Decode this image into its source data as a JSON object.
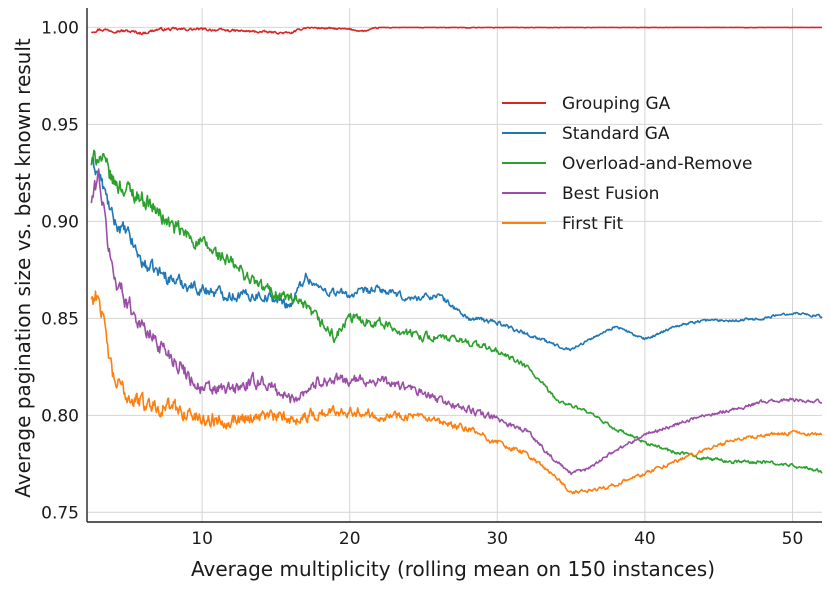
{
  "chart_data": {
    "type": "line",
    "title": "",
    "xlabel": "Average multiplicity (rolling mean on 150 instances)",
    "ylabel": "Average pagination size vs. best known result",
    "xlim": [
      2.2,
      52
    ],
    "ylim": [
      0.745,
      1.01
    ],
    "xticks": [
      10,
      20,
      30,
      40,
      50
    ],
    "yticks": [
      0.75,
      0.8,
      0.85,
      0.9,
      0.95,
      1.0
    ],
    "xtick_labels": [
      "10",
      "20",
      "30",
      "40",
      "50"
    ],
    "ytick_labels": [
      "0.75",
      "0.80",
      "0.85",
      "0.90",
      "0.95",
      "1.00"
    ],
    "grid": true,
    "legend_position": "upper-right",
    "series": [
      {
        "name": "Grouping GA",
        "color": "#d62728",
        "noise": 0.0015,
        "points": [
          [
            2.5,
            0.998
          ],
          [
            3,
            0.999
          ],
          [
            5,
            0.998
          ],
          [
            6,
            0.997
          ],
          [
            7,
            0.999
          ],
          [
            10,
            0.999
          ],
          [
            13,
            0.998
          ],
          [
            16,
            0.997
          ],
          [
            17,
            1.0
          ],
          [
            20,
            0.999
          ],
          [
            21,
            0.998
          ],
          [
            22,
            1.0
          ],
          [
            30,
            1.0
          ],
          [
            40,
            1.0
          ],
          [
            52,
            1.0
          ]
        ]
      },
      {
        "name": "Standard GA",
        "color": "#1f77b4",
        "noise": 0.007,
        "points": [
          [
            2.5,
            0.93
          ],
          [
            3,
            0.925
          ],
          [
            4,
            0.9
          ],
          [
            5,
            0.893
          ],
          [
            6,
            0.878
          ],
          [
            8,
            0.87
          ],
          [
            10,
            0.865
          ],
          [
            12,
            0.862
          ],
          [
            14,
            0.862
          ],
          [
            16,
            0.857
          ],
          [
            17,
            0.872
          ],
          [
            18,
            0.865
          ],
          [
            20,
            0.862
          ],
          [
            22,
            0.865
          ],
          [
            24,
            0.86
          ],
          [
            26,
            0.862
          ],
          [
            28,
            0.85
          ],
          [
            30,
            0.848
          ],
          [
            32,
            0.842
          ],
          [
            34,
            0.836
          ],
          [
            35,
            0.834
          ],
          [
            37,
            0.842
          ],
          [
            38,
            0.846
          ],
          [
            40,
            0.839
          ],
          [
            42,
            0.846
          ],
          [
            44,
            0.849
          ],
          [
            46,
            0.849
          ],
          [
            48,
            0.85
          ],
          [
            50,
            0.853
          ],
          [
            52,
            0.851
          ]
        ]
      },
      {
        "name": "Overload-and-Remove",
        "color": "#2ca02c",
        "noise": 0.009,
        "points": [
          [
            2.5,
            0.93
          ],
          [
            3,
            0.935
          ],
          [
            4,
            0.92
          ],
          [
            6,
            0.912
          ],
          [
            8,
            0.897
          ],
          [
            10,
            0.888
          ],
          [
            12,
            0.878
          ],
          [
            14,
            0.866
          ],
          [
            16,
            0.86
          ],
          [
            17,
            0.855
          ],
          [
            18,
            0.848
          ],
          [
            19,
            0.84
          ],
          [
            20,
            0.85
          ],
          [
            22,
            0.848
          ],
          [
            24,
            0.842
          ],
          [
            26,
            0.84
          ],
          [
            28,
            0.838
          ],
          [
            30,
            0.833
          ],
          [
            32,
            0.825
          ],
          [
            34,
            0.808
          ],
          [
            36,
            0.802
          ],
          [
            38,
            0.793
          ],
          [
            40,
            0.786
          ],
          [
            42,
            0.781
          ],
          [
            44,
            0.778
          ],
          [
            46,
            0.776
          ],
          [
            48,
            0.776
          ],
          [
            50,
            0.774
          ],
          [
            52,
            0.771
          ]
        ]
      },
      {
        "name": "Best Fusion",
        "color": "#9b4ea7",
        "noise": 0.009,
        "points": [
          [
            2.5,
            0.91
          ],
          [
            3,
            0.924
          ],
          [
            3.6,
            0.89
          ],
          [
            4,
            0.872
          ],
          [
            5,
            0.858
          ],
          [
            6,
            0.845
          ],
          [
            8,
            0.83
          ],
          [
            10,
            0.813
          ],
          [
            12,
            0.813
          ],
          [
            14,
            0.818
          ],
          [
            16,
            0.808
          ],
          [
            18,
            0.818
          ],
          [
            20,
            0.818
          ],
          [
            22,
            0.818
          ],
          [
            24,
            0.814
          ],
          [
            26,
            0.808
          ],
          [
            28,
            0.803
          ],
          [
            30,
            0.798
          ],
          [
            32,
            0.792
          ],
          [
            34,
            0.776
          ],
          [
            35,
            0.77
          ],
          [
            36,
            0.772
          ],
          [
            38,
            0.782
          ],
          [
            40,
            0.79
          ],
          [
            42,
            0.795
          ],
          [
            44,
            0.8
          ],
          [
            46,
            0.803
          ],
          [
            48,
            0.807
          ],
          [
            50,
            0.808
          ],
          [
            52,
            0.807
          ]
        ]
      },
      {
        "name": "First Fit",
        "color": "#ff7f0e",
        "noise": 0.009,
        "points": [
          [
            2.5,
            0.86
          ],
          [
            3,
            0.863
          ],
          [
            3.5,
            0.838
          ],
          [
            4,
            0.818
          ],
          [
            5,
            0.81
          ],
          [
            6,
            0.806
          ],
          [
            8,
            0.804
          ],
          [
            10,
            0.798
          ],
          [
            12,
            0.798
          ],
          [
            14,
            0.8
          ],
          [
            16,
            0.798
          ],
          [
            18,
            0.801
          ],
          [
            20,
            0.803
          ],
          [
            22,
            0.8
          ],
          [
            24,
            0.8
          ],
          [
            26,
            0.796
          ],
          [
            28,
            0.793
          ],
          [
            30,
            0.786
          ],
          [
            32,
            0.78
          ],
          [
            34,
            0.768
          ],
          [
            35,
            0.76
          ],
          [
            37,
            0.762
          ],
          [
            39,
            0.767
          ],
          [
            40,
            0.77
          ],
          [
            42,
            0.776
          ],
          [
            44,
            0.782
          ],
          [
            46,
            0.787
          ],
          [
            48,
            0.79
          ],
          [
            50,
            0.791
          ],
          [
            52,
            0.79
          ]
        ]
      }
    ]
  }
}
